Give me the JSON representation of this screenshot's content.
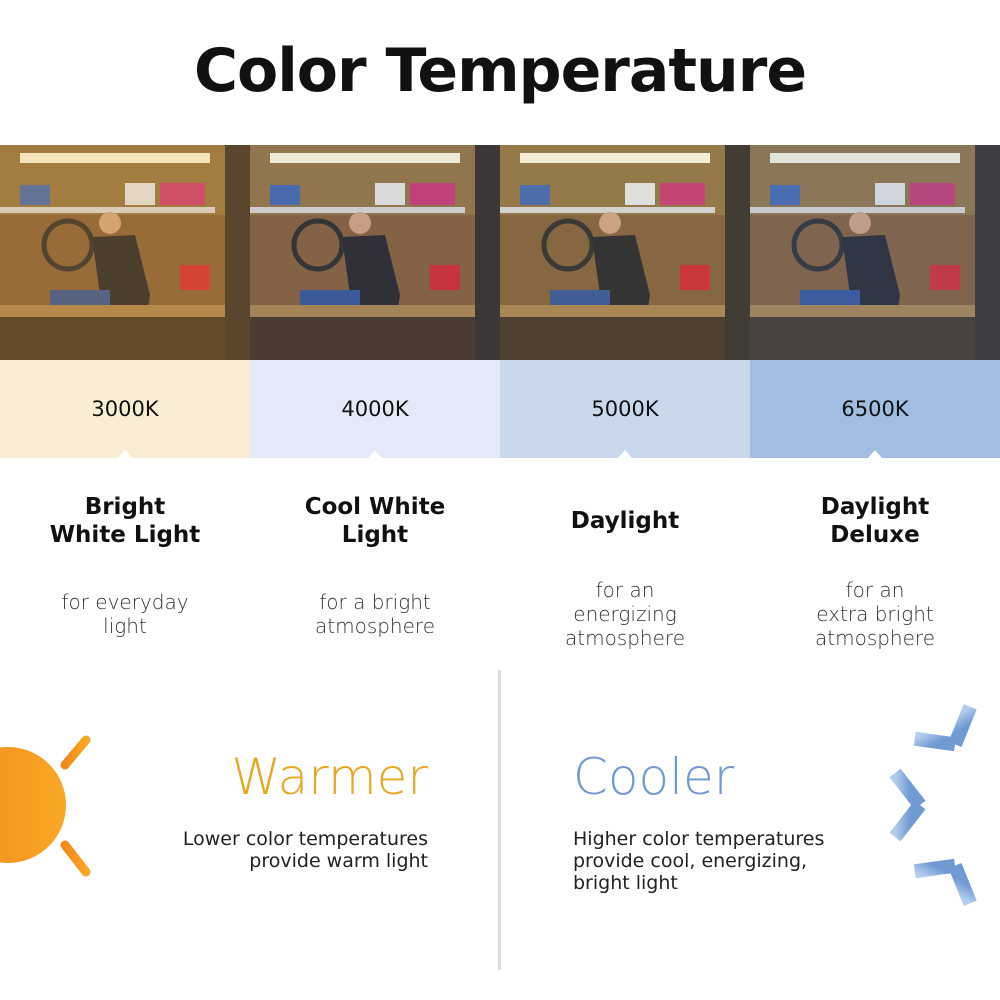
{
  "title": "Color Temperature",
  "columns": [
    {
      "kelvin": "3000K",
      "heading_line1": "Bright",
      "heading_line2": "White Light",
      "desc_line1": "for everyday",
      "desc_line2": "light",
      "desc_line3": "",
      "band_color": "#f9eed3",
      "tint": "rgba(255,190,90,0.22)"
    },
    {
      "kelvin": "4000K",
      "heading_line1": "Cool White",
      "heading_line2": "Light",
      "desc_line1": "for a bright",
      "desc_line2": "atmosphere",
      "desc_line3": "",
      "band_color": "#e3e9f6",
      "tint": "rgba(200,200,220,0.12)"
    },
    {
      "kelvin": "5000K",
      "heading_line1": "Daylight",
      "heading_line2": "",
      "desc_line1": "for an",
      "desc_line2": "energizing",
      "desc_line3": "atmosphere",
      "band_color": "#cad8eb",
      "tint": "rgba(230,230,200,0.12)"
    },
    {
      "kelvin": "6500K",
      "heading_line1": "Daylight",
      "heading_line2": "Deluxe",
      "desc_line1": "for an",
      "desc_line2": "extra bright",
      "desc_line3": "atmosphere",
      "band_color": "#a2bde2",
      "tint": "rgba(150,180,230,0.18)"
    }
  ],
  "warmer": {
    "title": "Warmer",
    "line1": "Lower color temperatures",
    "line2": "provide warm light",
    "color": "#e8a820",
    "icon": "sun-icon"
  },
  "cooler": {
    "title": "Cooler",
    "line1": "Higher color temperatures",
    "line2": "provide cool, energizing,",
    "line3": "bright light",
    "color": "#6f9ad2",
    "icon": "snowflake-icon"
  }
}
